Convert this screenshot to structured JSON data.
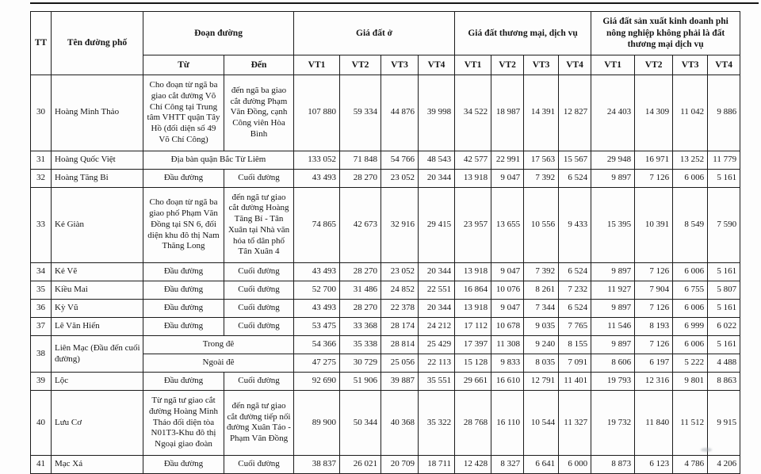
{
  "header": {
    "tt": "TT",
    "street": "Tên đường phố",
    "section": "Đoạn đường",
    "from": "Từ",
    "to": "Đến",
    "group_residential": "Giá đất ở",
    "group_commercial": "Giá đất thương mại, dịch vụ",
    "group_production": "Giá đất sản xuất kinh doanh phi nông nghiệp không phải là đất thương mại dịch vụ",
    "vt": [
      "VT1",
      "VT2",
      "VT3",
      "VT4"
    ]
  },
  "rows": [
    {
      "tt": "30",
      "name": "Hoàng Minh Thảo",
      "from": "Cho đoạn từ ngã ba giao cắt đường Võ Chí Công tại Trung tâm VHTT quận Tây Hồ (đối diện số 49 Võ Chí Công)",
      "to": "đến ngã ba giao cắt đường Phạm Văn Đồng, cạnh Công viên Hòa Bình",
      "values": [
        "107 880",
        "59 334",
        "44 876",
        "39 998",
        "34 522",
        "18 987",
        "14 391",
        "12 827",
        "24 403",
        "14 309",
        "11 042",
        "9 886"
      ]
    },
    {
      "tt": "31",
      "name": "Hoàng Quốc Việt",
      "section": "Địa bàn quận Bắc Từ Liêm",
      "values": [
        "133 052",
        "71 848",
        "54 766",
        "48 543",
        "42 577",
        "22 991",
        "17 563",
        "15 567",
        "29 948",
        "16 971",
        "13 252",
        "11 779"
      ]
    },
    {
      "tt": "32",
      "name": "Hoàng Tăng Bi",
      "from": "Đầu đường",
      "to": "Cuối đường",
      "values": [
        "43 493",
        "28 270",
        "23 052",
        "20 344",
        "13 918",
        "9 047",
        "7 392",
        "6 524",
        "9 897",
        "7 126",
        "6 006",
        "5 161"
      ]
    },
    {
      "tt": "33",
      "name": "Kẻ Giàn",
      "from": "Cho đoạn từ ngã ba giao phố Phạm Văn Đồng tại SN 6, đối diện khu đô thị Nam Thăng Long",
      "to": "đến ngã tư giao cắt đường Hoàng Tăng Bí - Tân Xuân tại Nhà văn hóa tổ dân phố Tân Xuân 4",
      "values": [
        "74 865",
        "42 673",
        "32 916",
        "29 415",
        "23 957",
        "13 655",
        "10 556",
        "9 433",
        "15 395",
        "10 391",
        "8 549",
        "7 590"
      ]
    },
    {
      "tt": "34",
      "name": "Kẻ Vẽ",
      "from": "Đầu đường",
      "to": "Cuối đường",
      "values": [
        "43 493",
        "28 270",
        "23 052",
        "20 344",
        "13 918",
        "9 047",
        "7 392",
        "6 524",
        "9 897",
        "7 126",
        "6 006",
        "5 161"
      ]
    },
    {
      "tt": "35",
      "name": "Kiều Mai",
      "from": "Đầu đường",
      "to": "Cuối đường",
      "values": [
        "52 700",
        "31 486",
        "24 852",
        "22 551",
        "16 864",
        "10 076",
        "8 261",
        "7 232",
        "11 927",
        "7 904",
        "6 755",
        "5 807"
      ]
    },
    {
      "tt": "36",
      "name": "Kỳ Vũ",
      "from": "Đầu đường",
      "to": "Cuối đường",
      "values": [
        "43 493",
        "28 270",
        "22 378",
        "20 344",
        "13 918",
        "9 047",
        "7 344",
        "6 524",
        "9 897",
        "7 126",
        "6 006",
        "5 161"
      ]
    },
    {
      "tt": "37",
      "name": "Lê Văn Hiến",
      "from": "Đầu đường",
      "to": "Cuối đường",
      "values": [
        "53 475",
        "33 368",
        "28 174",
        "24 212",
        "17 112",
        "10 678",
        "9 035",
        "7 765",
        "11 546",
        "8 193",
        "6 999",
        "6 022"
      ]
    },
    {
      "tt": "38",
      "name": "Liên Mạc (Đầu đến cuối đường)",
      "subrows": [
        {
          "section": "Trong đê",
          "values": [
            "54 366",
            "35 338",
            "28 814",
            "25 429",
            "17 397",
            "11 308",
            "9 240",
            "8 155",
            "9 897",
            "7 126",
            "6 006",
            "5 161"
          ]
        },
        {
          "section": "Ngoài đê",
          "values": [
            "47 275",
            "30 729",
            "25 056",
            "22 113",
            "15 128",
            "9 833",
            "8 035",
            "7 091",
            "8 606",
            "6 197",
            "5 222",
            "4 488"
          ]
        }
      ]
    },
    {
      "tt": "39",
      "name": "Lộc",
      "from": "Đầu đường",
      "to": "Cuối đường",
      "values": [
        "92 690",
        "51 906",
        "39 887",
        "35 551",
        "29 661",
        "16 610",
        "12 791",
        "11 401",
        "19 793",
        "12 316",
        "9 801",
        "8 863"
      ]
    },
    {
      "tt": "40",
      "name": "Lưu Cơ",
      "from": "Từ ngã tư giao cắt đường Hoàng Minh Thảo đối diện tòa N01T3-Khu đô thị Ngoại giao đoàn",
      "to": "đến ngã tư giao cắt đường tiếp nối đường Xuân Tảo - Phạm Văn Đồng",
      "values": [
        "89 900",
        "50 344",
        "40 368",
        "35 322",
        "28 768",
        "16 110",
        "10 544",
        "11 327",
        "19 732",
        "11 840",
        "11 512",
        "9 915"
      ]
    },
    {
      "tt": "41",
      "name": "Mạc Xá",
      "from": "Đầu đường",
      "to": "Cuối đường",
      "values": [
        "38 837",
        "26 021",
        "20 709",
        "18 711",
        "12 428",
        "8 327",
        "6 641",
        "6 000",
        "8 873",
        "6 123",
        "4 786",
        "4 206"
      ]
    }
  ]
}
